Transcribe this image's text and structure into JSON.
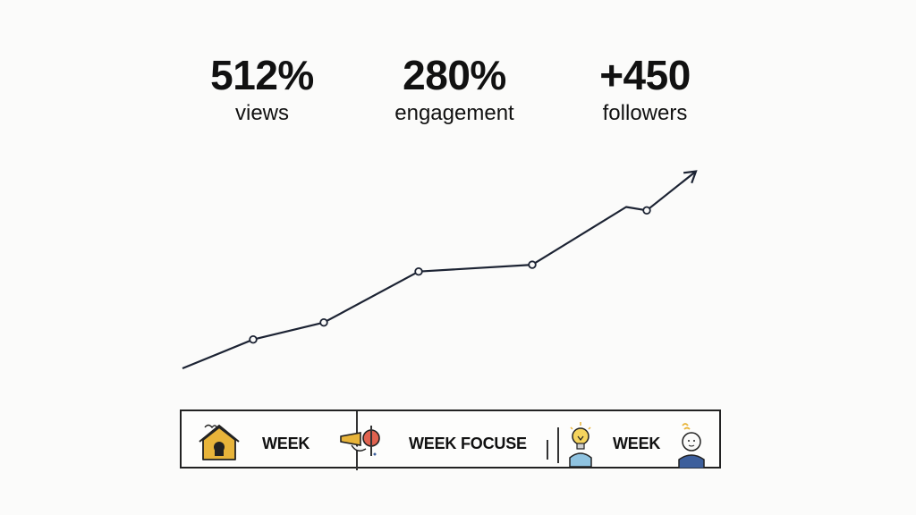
{
  "stats": [
    {
      "value": "512%",
      "label": "views"
    },
    {
      "value": "280%",
      "label": "engagement"
    },
    {
      "value": "+450",
      "label": "followers"
    }
  ],
  "chart_data": {
    "type": "line",
    "title": "",
    "xlabel": "",
    "ylabel": "",
    "grid": false,
    "arrow_at_end": true,
    "series": [
      {
        "color": "#1c2333",
        "points": [
          {
            "x": 0,
            "y": 0,
            "marker": false
          },
          {
            "x": 1,
            "y": 17,
            "marker": true
          },
          {
            "x": 2,
            "y": 27,
            "marker": true
          },
          {
            "x": 3,
            "y": 57,
            "marker": true
          },
          {
            "x": 4,
            "y": 61,
            "marker": true
          },
          {
            "x": 5,
            "y": 95,
            "marker": false
          },
          {
            "x": 6,
            "y": 93,
            "marker": true
          },
          {
            "x": 7,
            "y": 116,
            "marker": false
          }
        ]
      }
    ]
  },
  "timeline": {
    "segments": [
      {
        "label": "WEEK",
        "icon": "house-icon"
      },
      {
        "label": "WEEK FOCUSE",
        "icon": "megaphone-icon"
      },
      {
        "label": "WEEK",
        "icon": "lightbulb-person-icon"
      }
    ],
    "end_icon": "idea-person-icon",
    "colors": {
      "gold": "#e8b43a",
      "red": "#e0624f",
      "blue": "#3d5f9c",
      "light_blue": "#8fc3e0"
    }
  }
}
